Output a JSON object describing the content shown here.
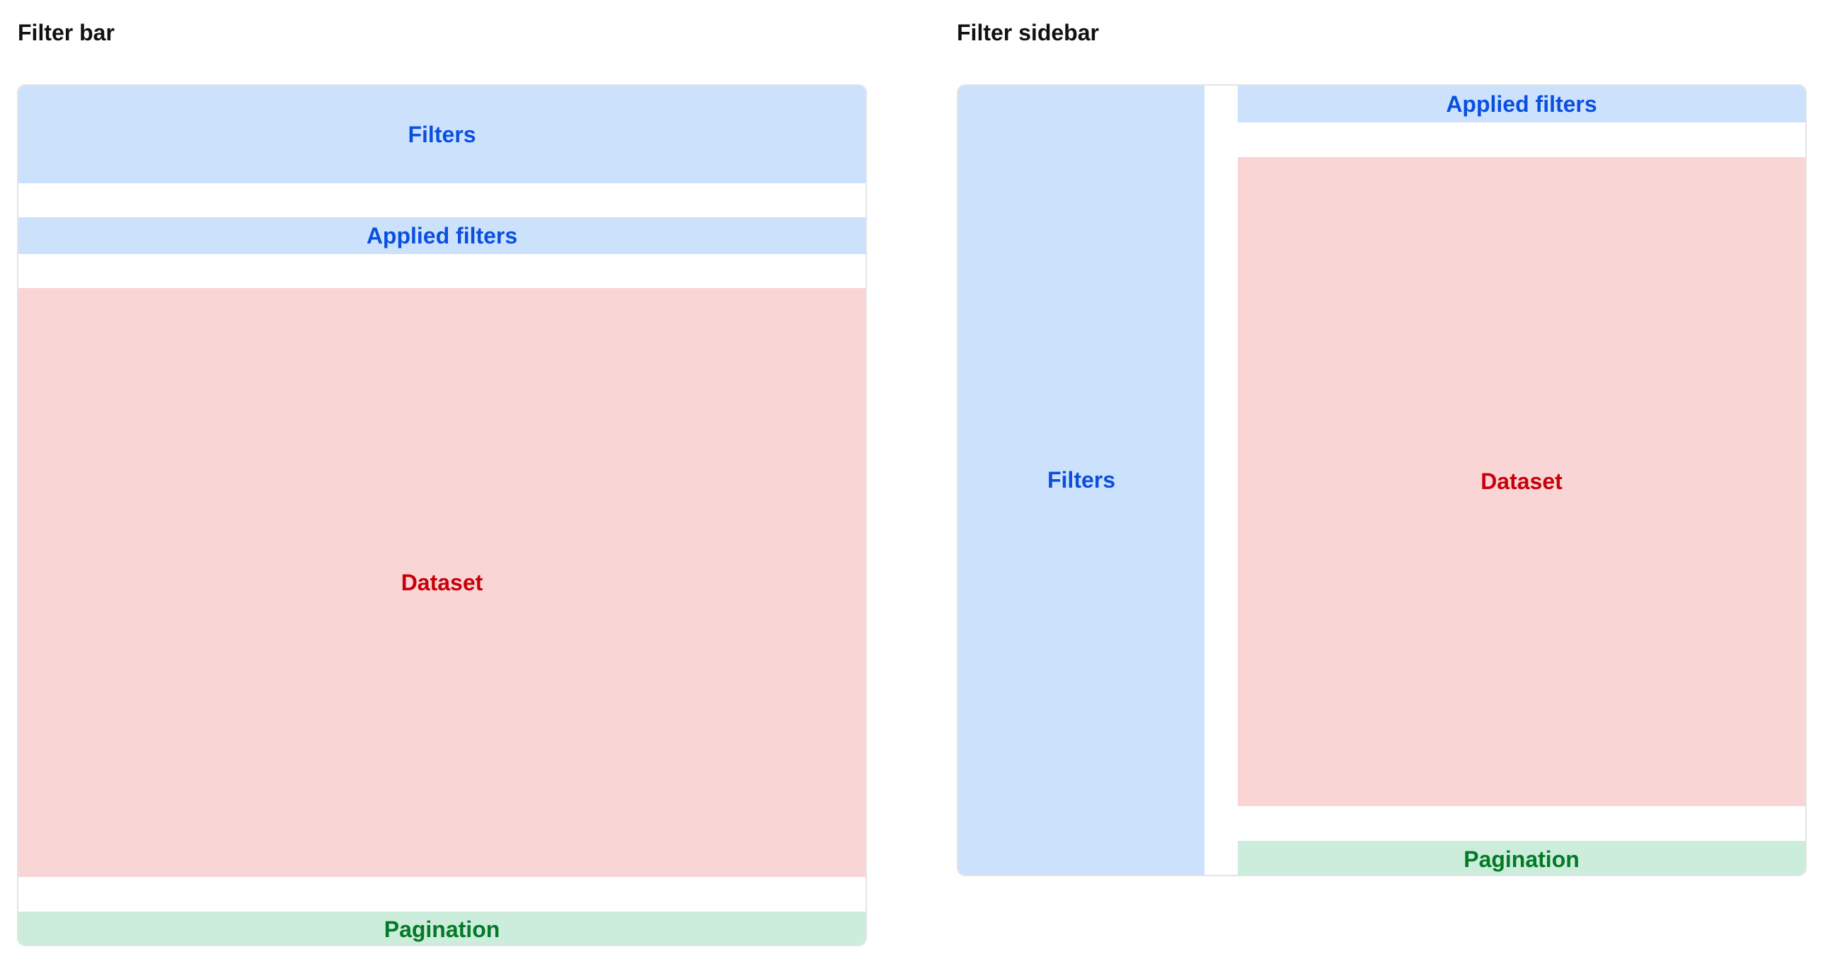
{
  "colors": {
    "filters_bg": "#cce2fc",
    "filters_text": "#0b4fe0",
    "dataset_bg": "#f9d5d5",
    "dataset_text": "#c8000a",
    "pagination_bg": "#ccecdc",
    "pagination_text": "#037a26"
  },
  "filter_bar": {
    "title": "Filter bar",
    "filters": "Filters",
    "applied_filters": "Applied filters",
    "dataset": "Dataset",
    "pagination": "Pagination"
  },
  "filter_sidebar": {
    "title": "Filter sidebar",
    "filters": "Filters",
    "applied_filters": "Applied filters",
    "dataset": "Dataset",
    "pagination": "Pagination"
  }
}
